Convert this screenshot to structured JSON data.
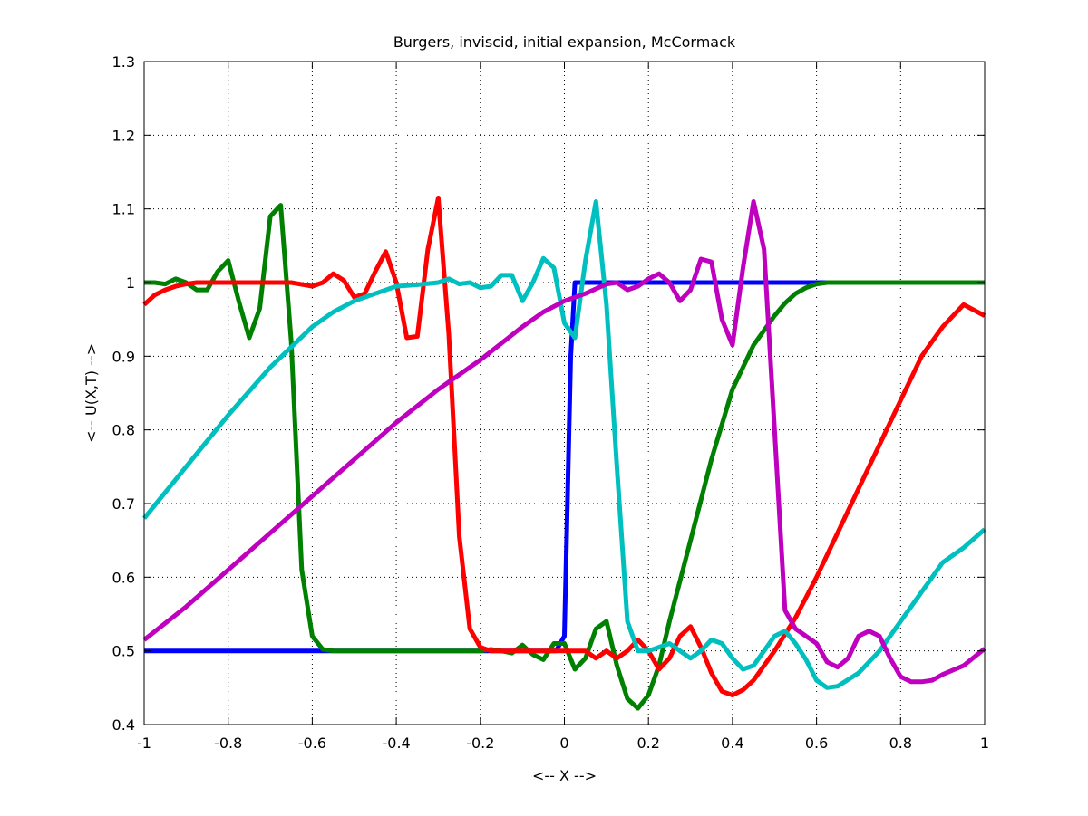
{
  "chart_data": {
    "type": "line",
    "title": "Burgers, inviscid, initial expansion, McCormack",
    "xlabel": "<-- X -->",
    "ylabel": "<-- U(X,T) -->",
    "xlim": [
      -1,
      1
    ],
    "ylim": [
      0.4,
      1.3
    ],
    "grid": true,
    "xticks": [
      -1,
      -0.8,
      -0.6,
      -0.4,
      -0.2,
      0,
      0.2,
      0.4,
      0.6,
      0.8,
      1
    ],
    "xtick_labels": [
      "-1",
      "-0.8",
      "-0.6",
      "-0.4",
      "-0.2",
      "0",
      "0.2",
      "0.4",
      "0.6",
      "0.8",
      "1"
    ],
    "yticks": [
      0.4,
      0.5,
      0.6,
      0.7,
      0.8,
      0.9,
      1,
      1.1,
      1.2,
      1.3
    ],
    "ytick_labels": [
      "0.4",
      "0.5",
      "0.6",
      "0.7",
      "0.8",
      "0.9",
      "1",
      "1.1",
      "1.2",
      "1.3"
    ],
    "series": [
      {
        "color": "#0000ff",
        "x": [
          -1,
          -0.55,
          -0.02,
          0.0,
          0.015,
          0.025,
          0.04,
          0.1,
          0.5,
          1
        ],
        "y": [
          0.5,
          0.5,
          0.5,
          0.52,
          0.9,
          1.0,
          1.0,
          1.0,
          1.0,
          1.0
        ]
      },
      {
        "color": "#008000",
        "x": [
          -1,
          -0.975,
          -0.95,
          -0.925,
          -0.9,
          -0.875,
          -0.85,
          -0.825,
          -0.8,
          -0.775,
          -0.75,
          -0.725,
          -0.7,
          -0.675,
          -0.65,
          -0.625,
          -0.6,
          -0.575,
          -0.55,
          -0.5,
          -0.4,
          -0.3,
          -0.2,
          -0.175,
          -0.15,
          -0.125,
          -0.1,
          -0.075,
          -0.05,
          -0.025,
          0,
          0.025,
          0.05,
          0.075,
          0.1,
          0.125,
          0.15,
          0.175,
          0.2,
          0.225,
          0.25,
          0.3,
          0.35,
          0.4,
          0.45,
          0.5,
          0.525,
          0.55,
          0.575,
          0.6,
          0.625,
          0.65,
          0.675,
          0.7,
          0.8,
          0.9,
          1
        ],
        "y": [
          1.0,
          1.0,
          0.998,
          1.005,
          1.0,
          0.99,
          0.99,
          1.015,
          1.03,
          0.975,
          0.925,
          0.965,
          1.09,
          1.105,
          0.92,
          0.61,
          0.52,
          0.502,
          0.5,
          0.5,
          0.5,
          0.5,
          0.5,
          0.502,
          0.5,
          0.497,
          0.508,
          0.495,
          0.488,
          0.51,
          0.51,
          0.475,
          0.49,
          0.53,
          0.54,
          0.48,
          0.435,
          0.422,
          0.44,
          0.48,
          0.54,
          0.65,
          0.76,
          0.855,
          0.915,
          0.955,
          0.972,
          0.985,
          0.993,
          0.998,
          1.0,
          1.0,
          1.0,
          1.0,
          1.0,
          1.0,
          1.0
        ]
      },
      {
        "color": "#ff0000",
        "x": [
          -1,
          -0.975,
          -0.95,
          -0.925,
          -0.9,
          -0.875,
          -0.85,
          -0.8,
          -0.75,
          -0.7,
          -0.65,
          -0.6,
          -0.575,
          -0.55,
          -0.525,
          -0.5,
          -0.475,
          -0.45,
          -0.425,
          -0.4,
          -0.375,
          -0.35,
          -0.325,
          -0.3,
          -0.275,
          -0.25,
          -0.225,
          -0.2,
          -0.175,
          -0.15,
          -0.1,
          -0.05,
          0,
          0.025,
          0.05,
          0.075,
          0.1,
          0.125,
          0.15,
          0.175,
          0.2,
          0.225,
          0.25,
          0.275,
          0.3,
          0.325,
          0.35,
          0.375,
          0.4,
          0.425,
          0.45,
          0.475,
          0.5,
          0.55,
          0.6,
          0.65,
          0.7,
          0.75,
          0.8,
          0.85,
          0.9,
          0.95,
          1
        ],
        "y": [
          0.97,
          0.983,
          0.99,
          0.995,
          0.998,
          1.0,
          1.0,
          1.0,
          1.0,
          1.0,
          1.0,
          0.995,
          1.0,
          1.012,
          1.003,
          0.98,
          0.985,
          1.015,
          1.042,
          1.0,
          0.925,
          0.927,
          1.045,
          1.115,
          0.93,
          0.655,
          0.53,
          0.505,
          0.5,
          0.5,
          0.5,
          0.5,
          0.5,
          0.5,
          0.5,
          0.49,
          0.5,
          0.49,
          0.5,
          0.515,
          0.5,
          0.475,
          0.49,
          0.52,
          0.533,
          0.505,
          0.47,
          0.445,
          0.44,
          0.447,
          0.46,
          0.48,
          0.5,
          0.545,
          0.6,
          0.66,
          0.72,
          0.78,
          0.84,
          0.9,
          0.94,
          0.97,
          0.955
        ]
      },
      {
        "color": "#00bfbf",
        "x": [
          -1,
          -0.9,
          -0.8,
          -0.7,
          -0.6,
          -0.55,
          -0.5,
          -0.45,
          -0.4,
          -0.35,
          -0.3,
          -0.275,
          -0.25,
          -0.225,
          -0.2,
          -0.175,
          -0.15,
          -0.125,
          -0.1,
          -0.075,
          -0.05,
          -0.025,
          0,
          0.025,
          0.05,
          0.075,
          0.1,
          0.125,
          0.15,
          0.175,
          0.2,
          0.225,
          0.25,
          0.275,
          0.3,
          0.325,
          0.35,
          0.375,
          0.4,
          0.425,
          0.45,
          0.475,
          0.5,
          0.525,
          0.55,
          0.575,
          0.6,
          0.625,
          0.65,
          0.7,
          0.75,
          0.8,
          0.85,
          0.9,
          0.95,
          1
        ],
        "y": [
          0.68,
          0.75,
          0.82,
          0.885,
          0.94,
          0.96,
          0.975,
          0.985,
          0.995,
          0.997,
          1.0,
          1.005,
          0.998,
          1.0,
          0.993,
          0.995,
          1.01,
          1.01,
          0.975,
          1.0,
          1.033,
          1.02,
          0.945,
          0.925,
          1.03,
          1.11,
          0.97,
          0.75,
          0.54,
          0.5,
          0.5,
          0.505,
          0.51,
          0.5,
          0.49,
          0.5,
          0.515,
          0.51,
          0.49,
          0.475,
          0.48,
          0.5,
          0.52,
          0.527,
          0.51,
          0.488,
          0.46,
          0.45,
          0.452,
          0.47,
          0.5,
          0.54,
          0.58,
          0.62,
          0.64,
          0.665
        ]
      },
      {
        "color": "#bf00bf",
        "x": [
          -1,
          -0.9,
          -0.8,
          -0.7,
          -0.6,
          -0.5,
          -0.4,
          -0.3,
          -0.2,
          -0.1,
          -0.05,
          0,
          0.05,
          0.1,
          0.125,
          0.15,
          0.175,
          0.2,
          0.225,
          0.25,
          0.275,
          0.3,
          0.325,
          0.35,
          0.375,
          0.4,
          0.425,
          0.45,
          0.475,
          0.5,
          0.525,
          0.55,
          0.575,
          0.6,
          0.625,
          0.65,
          0.675,
          0.7,
          0.725,
          0.75,
          0.775,
          0.8,
          0.825,
          0.85,
          0.875,
          0.9,
          0.95,
          1
        ],
        "y": [
          0.515,
          0.56,
          0.61,
          0.66,
          0.71,
          0.76,
          0.81,
          0.855,
          0.895,
          0.94,
          0.96,
          0.975,
          0.985,
          0.998,
          1.0,
          0.99,
          0.995,
          1.005,
          1.012,
          1.0,
          0.975,
          0.99,
          1.032,
          1.028,
          0.95,
          0.915,
          1.02,
          1.11,
          1.045,
          0.8,
          0.555,
          0.53,
          0.52,
          0.51,
          0.485,
          0.478,
          0.49,
          0.52,
          0.527,
          0.52,
          0.49,
          0.465,
          0.458,
          0.458,
          0.46,
          0.468,
          0.48,
          0.503
        ]
      }
    ]
  }
}
